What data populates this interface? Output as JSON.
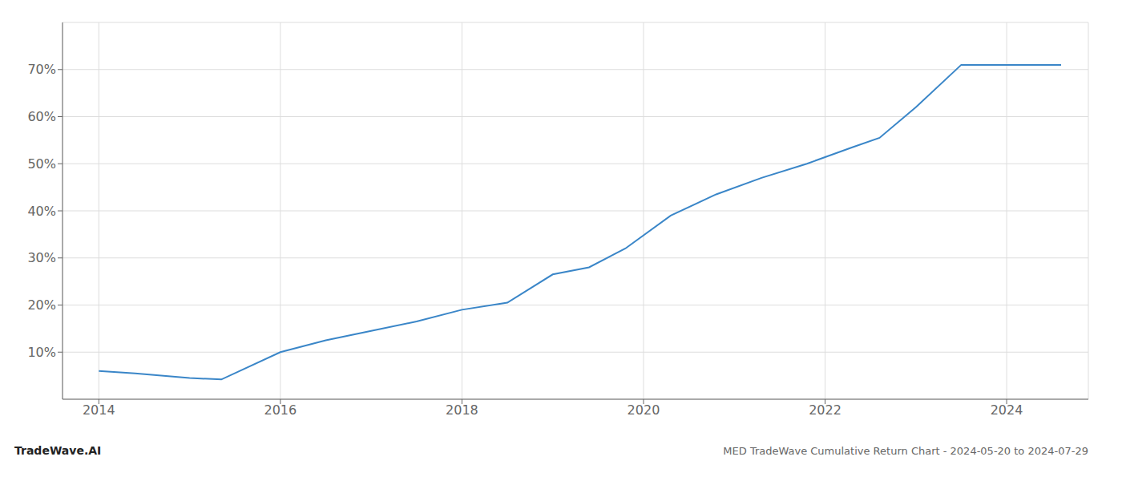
{
  "chart_data": {
    "type": "line",
    "title": "MED TradeWave Cumulative Return Chart - 2024-05-20 to 2024-07-29",
    "annotations": [
      "TradeWave.AI"
    ],
    "x": [
      2014.0,
      2014.4,
      2015.0,
      2015.35,
      2016.0,
      2016.5,
      2017.0,
      2017.5,
      2018.0,
      2018.5,
      2019.0,
      2019.4,
      2019.8,
      2020.3,
      2020.8,
      2021.3,
      2021.8,
      2022.3,
      2022.6,
      2023.0,
      2023.5,
      2024.0,
      2024.6
    ],
    "values": [
      6.0,
      5.5,
      4.5,
      4.2,
      10.0,
      12.5,
      14.5,
      16.5,
      19.0,
      20.5,
      26.5,
      28.0,
      32.0,
      39.0,
      43.5,
      47.0,
      50.0,
      53.5,
      55.5,
      62.0,
      71.0,
      71.0,
      71.0
    ],
    "color": "#3a86c8",
    "xlim": [
      2013.6,
      2024.9
    ],
    "ylim": [
      0,
      80
    ],
    "xticks": [
      2014,
      2016,
      2018,
      2020,
      2022,
      2024
    ],
    "yticks": [
      {
        "value": 10,
        "label": "10%"
      },
      {
        "value": 20,
        "label": "20%"
      },
      {
        "value": 30,
        "label": "30%"
      },
      {
        "value": 40,
        "label": "40%"
      },
      {
        "value": 50,
        "label": "50%"
      },
      {
        "value": 60,
        "label": "60%"
      },
      {
        "value": 70,
        "label": "70%"
      }
    ],
    "grid": true
  }
}
